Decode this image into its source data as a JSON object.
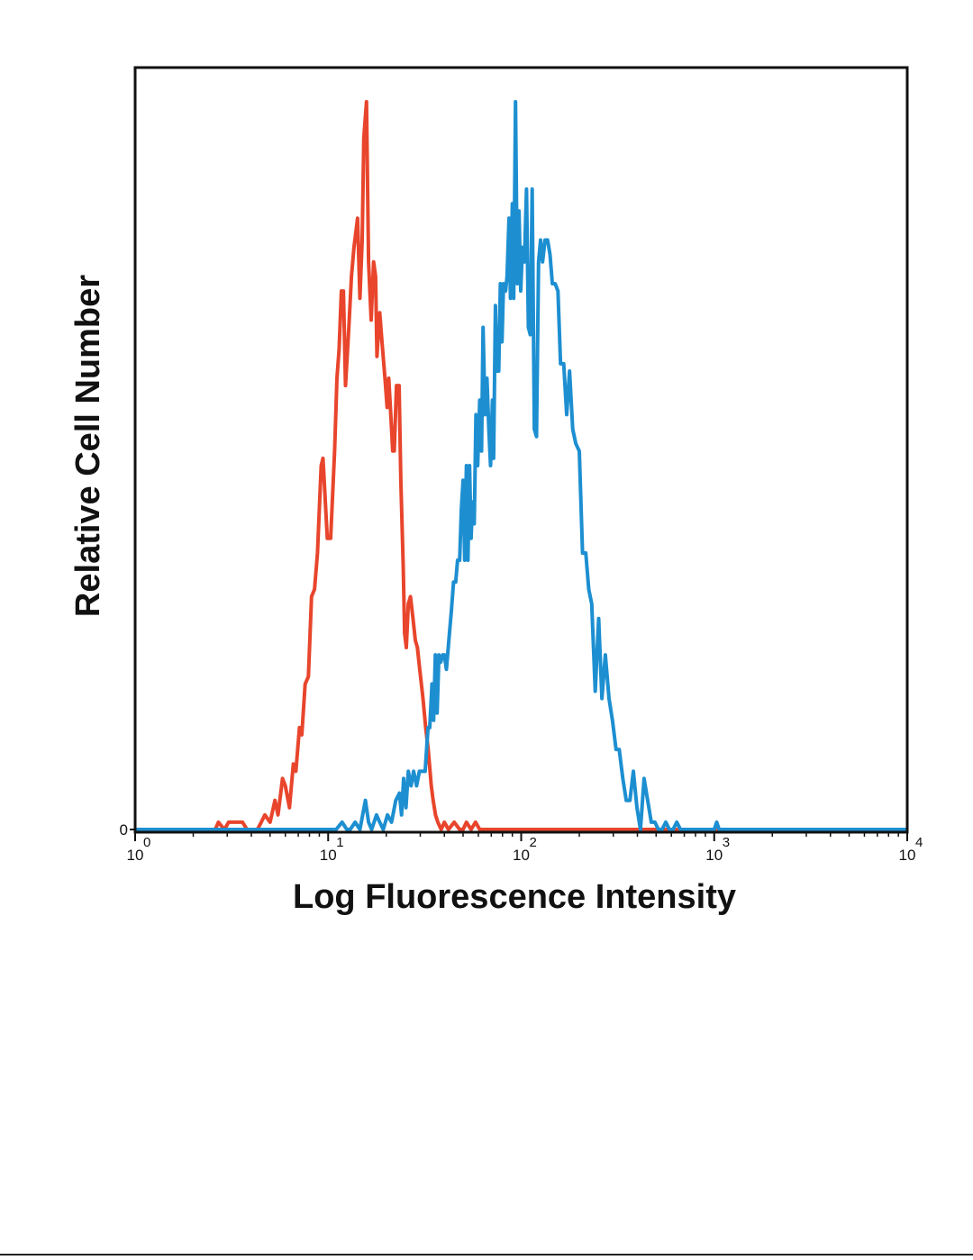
{
  "chart_data": {
    "type": "line",
    "xlabel": "Log Fluorescence Intensity",
    "ylabel": "Relative Cell Number",
    "x_scale": "log",
    "xlim": [
      1,
      10000
    ],
    "ylim": [
      0,
      100
    ],
    "y_ticks": [
      {
        "value": 0,
        "label": "0"
      }
    ],
    "x_ticks": [
      {
        "value": 1,
        "base": "10",
        "exp": "0"
      },
      {
        "value": 10,
        "base": "10",
        "exp": "1"
      },
      {
        "value": 100,
        "base": "10",
        "exp": "2"
      },
      {
        "value": 1000,
        "base": "10",
        "exp": "3"
      },
      {
        "value": 10000,
        "base": "10",
        "exp": "4"
      }
    ],
    "grid": false,
    "legend": "none",
    "series": [
      {
        "color": "#e8452c",
        "points": [
          [
            1.0,
            0
          ],
          [
            2.6,
            0
          ],
          [
            2.7,
            1
          ],
          [
            2.9,
            0
          ],
          [
            3.05,
            1
          ],
          [
            3.6,
            1
          ],
          [
            3.8,
            0
          ],
          [
            4.3,
            0
          ],
          [
            4.5,
            1
          ],
          [
            4.7,
            2
          ],
          [
            5.0,
            1
          ],
          [
            5.3,
            4
          ],
          [
            5.5,
            2
          ],
          [
            5.8,
            7
          ],
          [
            6.0,
            6
          ],
          [
            6.3,
            3
          ],
          [
            6.6,
            9
          ],
          [
            6.8,
            8
          ],
          [
            7.1,
            14
          ],
          [
            7.3,
            13
          ],
          [
            7.6,
            20
          ],
          [
            7.9,
            21
          ],
          [
            8.2,
            32
          ],
          [
            8.5,
            33
          ],
          [
            8.8,
            38
          ],
          [
            9.2,
            50
          ],
          [
            9.4,
            51
          ],
          [
            9.9,
            40
          ],
          [
            10.3,
            40
          ],
          [
            10.8,
            52
          ],
          [
            11.1,
            62
          ],
          [
            11.4,
            66
          ],
          [
            11.7,
            74
          ],
          [
            12.0,
            74
          ],
          [
            12.3,
            61
          ],
          [
            12.8,
            69
          ],
          [
            13.2,
            76
          ],
          [
            13.6,
            80
          ],
          [
            14.2,
            84
          ],
          [
            14.6,
            73
          ],
          [
            15.0,
            81
          ],
          [
            15.3,
            95
          ],
          [
            15.8,
            100
          ],
          [
            16.2,
            78
          ],
          [
            16.7,
            70
          ],
          [
            17.2,
            78
          ],
          [
            17.6,
            76
          ],
          [
            17.9,
            65
          ],
          [
            18.5,
            71
          ],
          [
            19.0,
            67
          ],
          [
            19.7,
            62
          ],
          [
            20.2,
            58
          ],
          [
            20.6,
            62
          ],
          [
            21.2,
            56
          ],
          [
            21.6,
            52
          ],
          [
            22.0,
            52
          ],
          [
            22.6,
            61
          ],
          [
            23.3,
            61
          ],
          [
            23.8,
            48
          ],
          [
            24.5,
            36
          ],
          [
            24.9,
            27
          ],
          [
            25.4,
            25
          ],
          [
            26.0,
            31
          ],
          [
            26.7,
            32
          ],
          [
            27.5,
            29
          ],
          [
            28.3,
            26
          ],
          [
            29.0,
            25
          ],
          [
            29.8,
            22
          ],
          [
            31.0,
            18
          ],
          [
            32.0,
            14
          ],
          [
            33.0,
            11
          ],
          [
            34.2,
            6
          ],
          [
            35.0,
            4
          ],
          [
            36.0,
            2
          ],
          [
            37.0,
            1
          ],
          [
            38.5,
            0
          ],
          [
            40.0,
            1
          ],
          [
            42.0,
            0
          ],
          [
            45.0,
            1
          ],
          [
            48.0,
            0
          ],
          [
            50.0,
            0
          ],
          [
            52.0,
            1
          ],
          [
            55.0,
            0
          ],
          [
            58.0,
            1
          ],
          [
            61.0,
            0
          ],
          [
            70.0,
            0
          ],
          [
            300.0,
            0
          ],
          [
            10000.0,
            0
          ]
        ]
      },
      {
        "color": "#1d8fd1",
        "points": [
          [
            1.0,
            0
          ],
          [
            11.0,
            0
          ],
          [
            11.8,
            1
          ],
          [
            12.5,
            0
          ],
          [
            13.0,
            0
          ],
          [
            13.8,
            1
          ],
          [
            14.6,
            0
          ],
          [
            15.6,
            4
          ],
          [
            16.2,
            1
          ],
          [
            16.8,
            0
          ],
          [
            17.8,
            2
          ],
          [
            18.5,
            1
          ],
          [
            19.3,
            0
          ],
          [
            20.3,
            2
          ],
          [
            21.3,
            1
          ],
          [
            22.4,
            4
          ],
          [
            23.4,
            5
          ],
          [
            24.0,
            2
          ],
          [
            24.6,
            7
          ],
          [
            25.3,
            3
          ],
          [
            26.0,
            8
          ],
          [
            26.9,
            6
          ],
          [
            27.7,
            8
          ],
          [
            28.7,
            6
          ],
          [
            29.7,
            8
          ],
          [
            30.8,
            8
          ],
          [
            31.8,
            8
          ],
          [
            32.9,
            14
          ],
          [
            33.6,
            14
          ],
          [
            34.5,
            20
          ],
          [
            35.2,
            15
          ],
          [
            35.9,
            24
          ],
          [
            36.7,
            16
          ],
          [
            37.5,
            24
          ],
          [
            38.3,
            23
          ],
          [
            39.2,
            24
          ],
          [
            40.0,
            24
          ],
          [
            41.0,
            22
          ],
          [
            42.5,
            27
          ],
          [
            43.5,
            30
          ],
          [
            44.6,
            34
          ],
          [
            45.8,
            34
          ],
          [
            46.8,
            37
          ],
          [
            48.0,
            37
          ],
          [
            49.0,
            44
          ],
          [
            50.0,
            48
          ],
          [
            51.0,
            37
          ],
          [
            52.0,
            50
          ],
          [
            53.0,
            37
          ],
          [
            54.0,
            50
          ],
          [
            55.0,
            40
          ],
          [
            56.0,
            45
          ],
          [
            57.1,
            42
          ],
          [
            58.3,
            57
          ],
          [
            59.5,
            50
          ],
          [
            61.0,
            59
          ],
          [
            62.3,
            52
          ],
          [
            63.5,
            69
          ],
          [
            65.0,
            57
          ],
          [
            66.5,
            62
          ],
          [
            68.0,
            55
          ],
          [
            69.4,
            50
          ],
          [
            71.0,
            59
          ],
          [
            72.0,
            51
          ],
          [
            73.5,
            72
          ],
          [
            75.0,
            63
          ],
          [
            76.5,
            63
          ],
          [
            78.0,
            75
          ],
          [
            79.5,
            67
          ],
          [
            81.0,
            75
          ],
          [
            83.0,
            74
          ],
          [
            84.5,
            76
          ],
          [
            86.5,
            84
          ],
          [
            88.0,
            73
          ],
          [
            90.0,
            86
          ],
          [
            91.5,
            73
          ],
          [
            93.5,
            100
          ],
          [
            95.5,
            75
          ],
          [
            97.5,
            85
          ],
          [
            99.5,
            74
          ],
          [
            101.5,
            80
          ],
          [
            104.0,
            78
          ],
          [
            106.5,
            88
          ],
          [
            109.0,
            69
          ],
          [
            111.5,
            68
          ],
          [
            114.0,
            88
          ],
          [
            117.0,
            55
          ],
          [
            120.0,
            54
          ],
          [
            123.0,
            78
          ],
          [
            126.0,
            81
          ],
          [
            129.0,
            78
          ],
          [
            133.0,
            81
          ],
          [
            137.0,
            81
          ],
          [
            141.0,
            79
          ],
          [
            145.0,
            75
          ],
          [
            150.0,
            75
          ],
          [
            155.0,
            74
          ],
          [
            160.0,
            64
          ],
          [
            166.0,
            64
          ],
          [
            172.0,
            57
          ],
          [
            178.0,
            63
          ],
          [
            185.0,
            55
          ],
          [
            192.0,
            53
          ],
          [
            200.0,
            52
          ],
          [
            208.0,
            38
          ],
          [
            216.0,
            38
          ],
          [
            224.0,
            33
          ],
          [
            232.0,
            31
          ],
          [
            242.0,
            19
          ],
          [
            252.0,
            29
          ],
          [
            262.0,
            18
          ],
          [
            273.0,
            24
          ],
          [
            285.0,
            18
          ],
          [
            297.0,
            15
          ],
          [
            310.0,
            11
          ],
          [
            322.0,
            11
          ],
          [
            336.0,
            7
          ],
          [
            350.0,
            4
          ],
          [
            366.0,
            4
          ],
          [
            381.0,
            8
          ],
          [
            398.0,
            3
          ],
          [
            415.0,
            0
          ],
          [
            433.0,
            7
          ],
          [
            452.0,
            4
          ],
          [
            472.0,
            1
          ],
          [
            493.0,
            1
          ],
          [
            514.0,
            0
          ],
          [
            537.0,
            0
          ],
          [
            561.0,
            1
          ],
          [
            586.0,
            0
          ],
          [
            612.0,
            0
          ],
          [
            640.0,
            1
          ],
          [
            669.0,
            0
          ],
          [
            1000.0,
            0
          ],
          [
            1030.0,
            1
          ],
          [
            1060.0,
            0
          ],
          [
            10000.0,
            0
          ]
        ]
      }
    ]
  }
}
